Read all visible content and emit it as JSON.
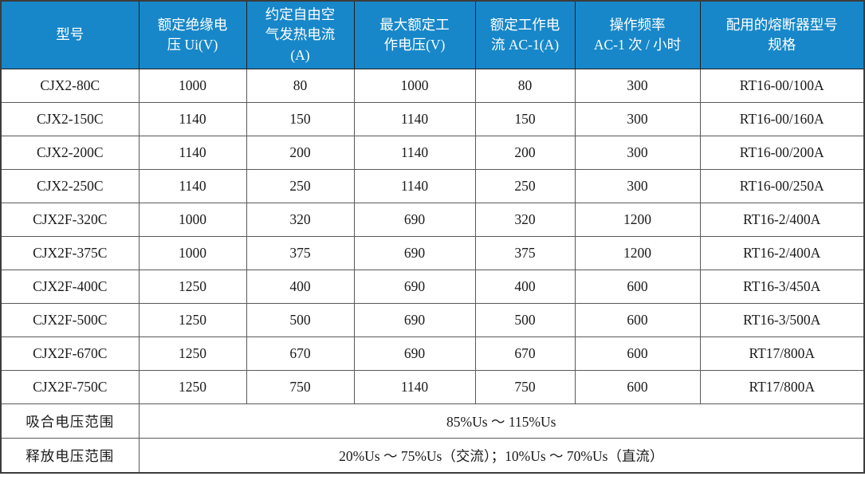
{
  "chart_data": {
    "type": "table",
    "columns": [
      "型号",
      "额定绝缘电\n压 Ui(V)",
      "约定自由空\n气发热电流\n(A)",
      "最大额定工\n作电压(V)",
      "额定工作电\n流 AC-1(A)",
      "操作频率\nAC-1 次 / 小时",
      "配用的熔断器型号\n规格"
    ],
    "rows": [
      [
        "CJX2-80C",
        "1000",
        "80",
        "1000",
        "80",
        "300",
        "RT16-00/100A"
      ],
      [
        "CJX2-150C",
        "1140",
        "150",
        "1140",
        "150",
        "300",
        "RT16-00/160A"
      ],
      [
        "CJX2-200C",
        "1140",
        "200",
        "1140",
        "200",
        "300",
        "RT16-00/200A"
      ],
      [
        "CJX2-250C",
        "1140",
        "250",
        "1140",
        "250",
        "300",
        "RT16-00/250A"
      ],
      [
        "CJX2F-320C",
        "1000",
        "320",
        "690",
        "320",
        "1200",
        "RT16-2/400A"
      ],
      [
        "CJX2F-375C",
        "1000",
        "375",
        "690",
        "375",
        "1200",
        "RT16-2/400A"
      ],
      [
        "CJX2F-400C",
        "1250",
        "400",
        "690",
        "400",
        "600",
        "RT16-3/450A"
      ],
      [
        "CJX2F-500C",
        "1250",
        "500",
        "690",
        "500",
        "600",
        "RT16-3/500A"
      ],
      [
        "CJX2F-670C",
        "1250",
        "670",
        "690",
        "670",
        "600",
        "RT17/800A"
      ],
      [
        "CJX2F-750C",
        "1250",
        "750",
        "1140",
        "750",
        "600",
        "RT17/800A"
      ]
    ],
    "footer_rows": [
      {
        "label": "吸合电压范围",
        "value": "85%Us ～ 115%Us"
      },
      {
        "label": "释放电压范围",
        "value": "20%Us ～ 75%Us（交流）；10%Us ～ 70%Us（直流）"
      }
    ],
    "layout_hints": {
      "grid": "on",
      "header_position": "top"
    }
  },
  "colors": {
    "header_bg": "#1787c9",
    "header_text": "#ffffff",
    "body_text": "#1a1a1a",
    "grid_line": "#595959",
    "outer_border": "#3c3c3c"
  }
}
